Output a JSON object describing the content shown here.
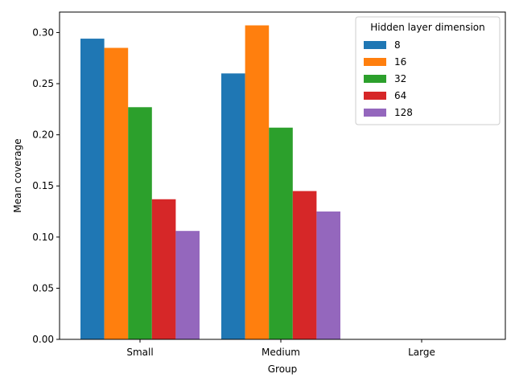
{
  "chart_data": {
    "type": "bar",
    "xlabel": "Group",
    "ylabel": "Mean coverage",
    "categories": [
      "Small",
      "Medium",
      "Large"
    ],
    "ylim": [
      0,
      0.32
    ],
    "yticks": [
      0.0,
      0.05,
      0.1,
      0.15,
      0.2,
      0.25,
      0.3
    ],
    "ytick_labels": [
      "0.00",
      "0.05",
      "0.10",
      "0.15",
      "0.20",
      "0.25",
      "0.30"
    ],
    "grid": false,
    "legend": {
      "title": "Hidden layer dimension",
      "placement": "top-right"
    },
    "series": [
      {
        "name": "8",
        "color": "#1f77b4",
        "values": [
          0.294,
          0.26,
          null
        ]
      },
      {
        "name": "16",
        "color": "#ff7f0e",
        "values": [
          0.285,
          0.307,
          null
        ]
      },
      {
        "name": "32",
        "color": "#2ca02c",
        "values": [
          0.227,
          0.207,
          null
        ]
      },
      {
        "name": "64",
        "color": "#d62728",
        "values": [
          0.137,
          0.145,
          null
        ]
      },
      {
        "name": "128",
        "color": "#9467bd",
        "values": [
          0.106,
          0.125,
          null
        ]
      }
    ]
  }
}
